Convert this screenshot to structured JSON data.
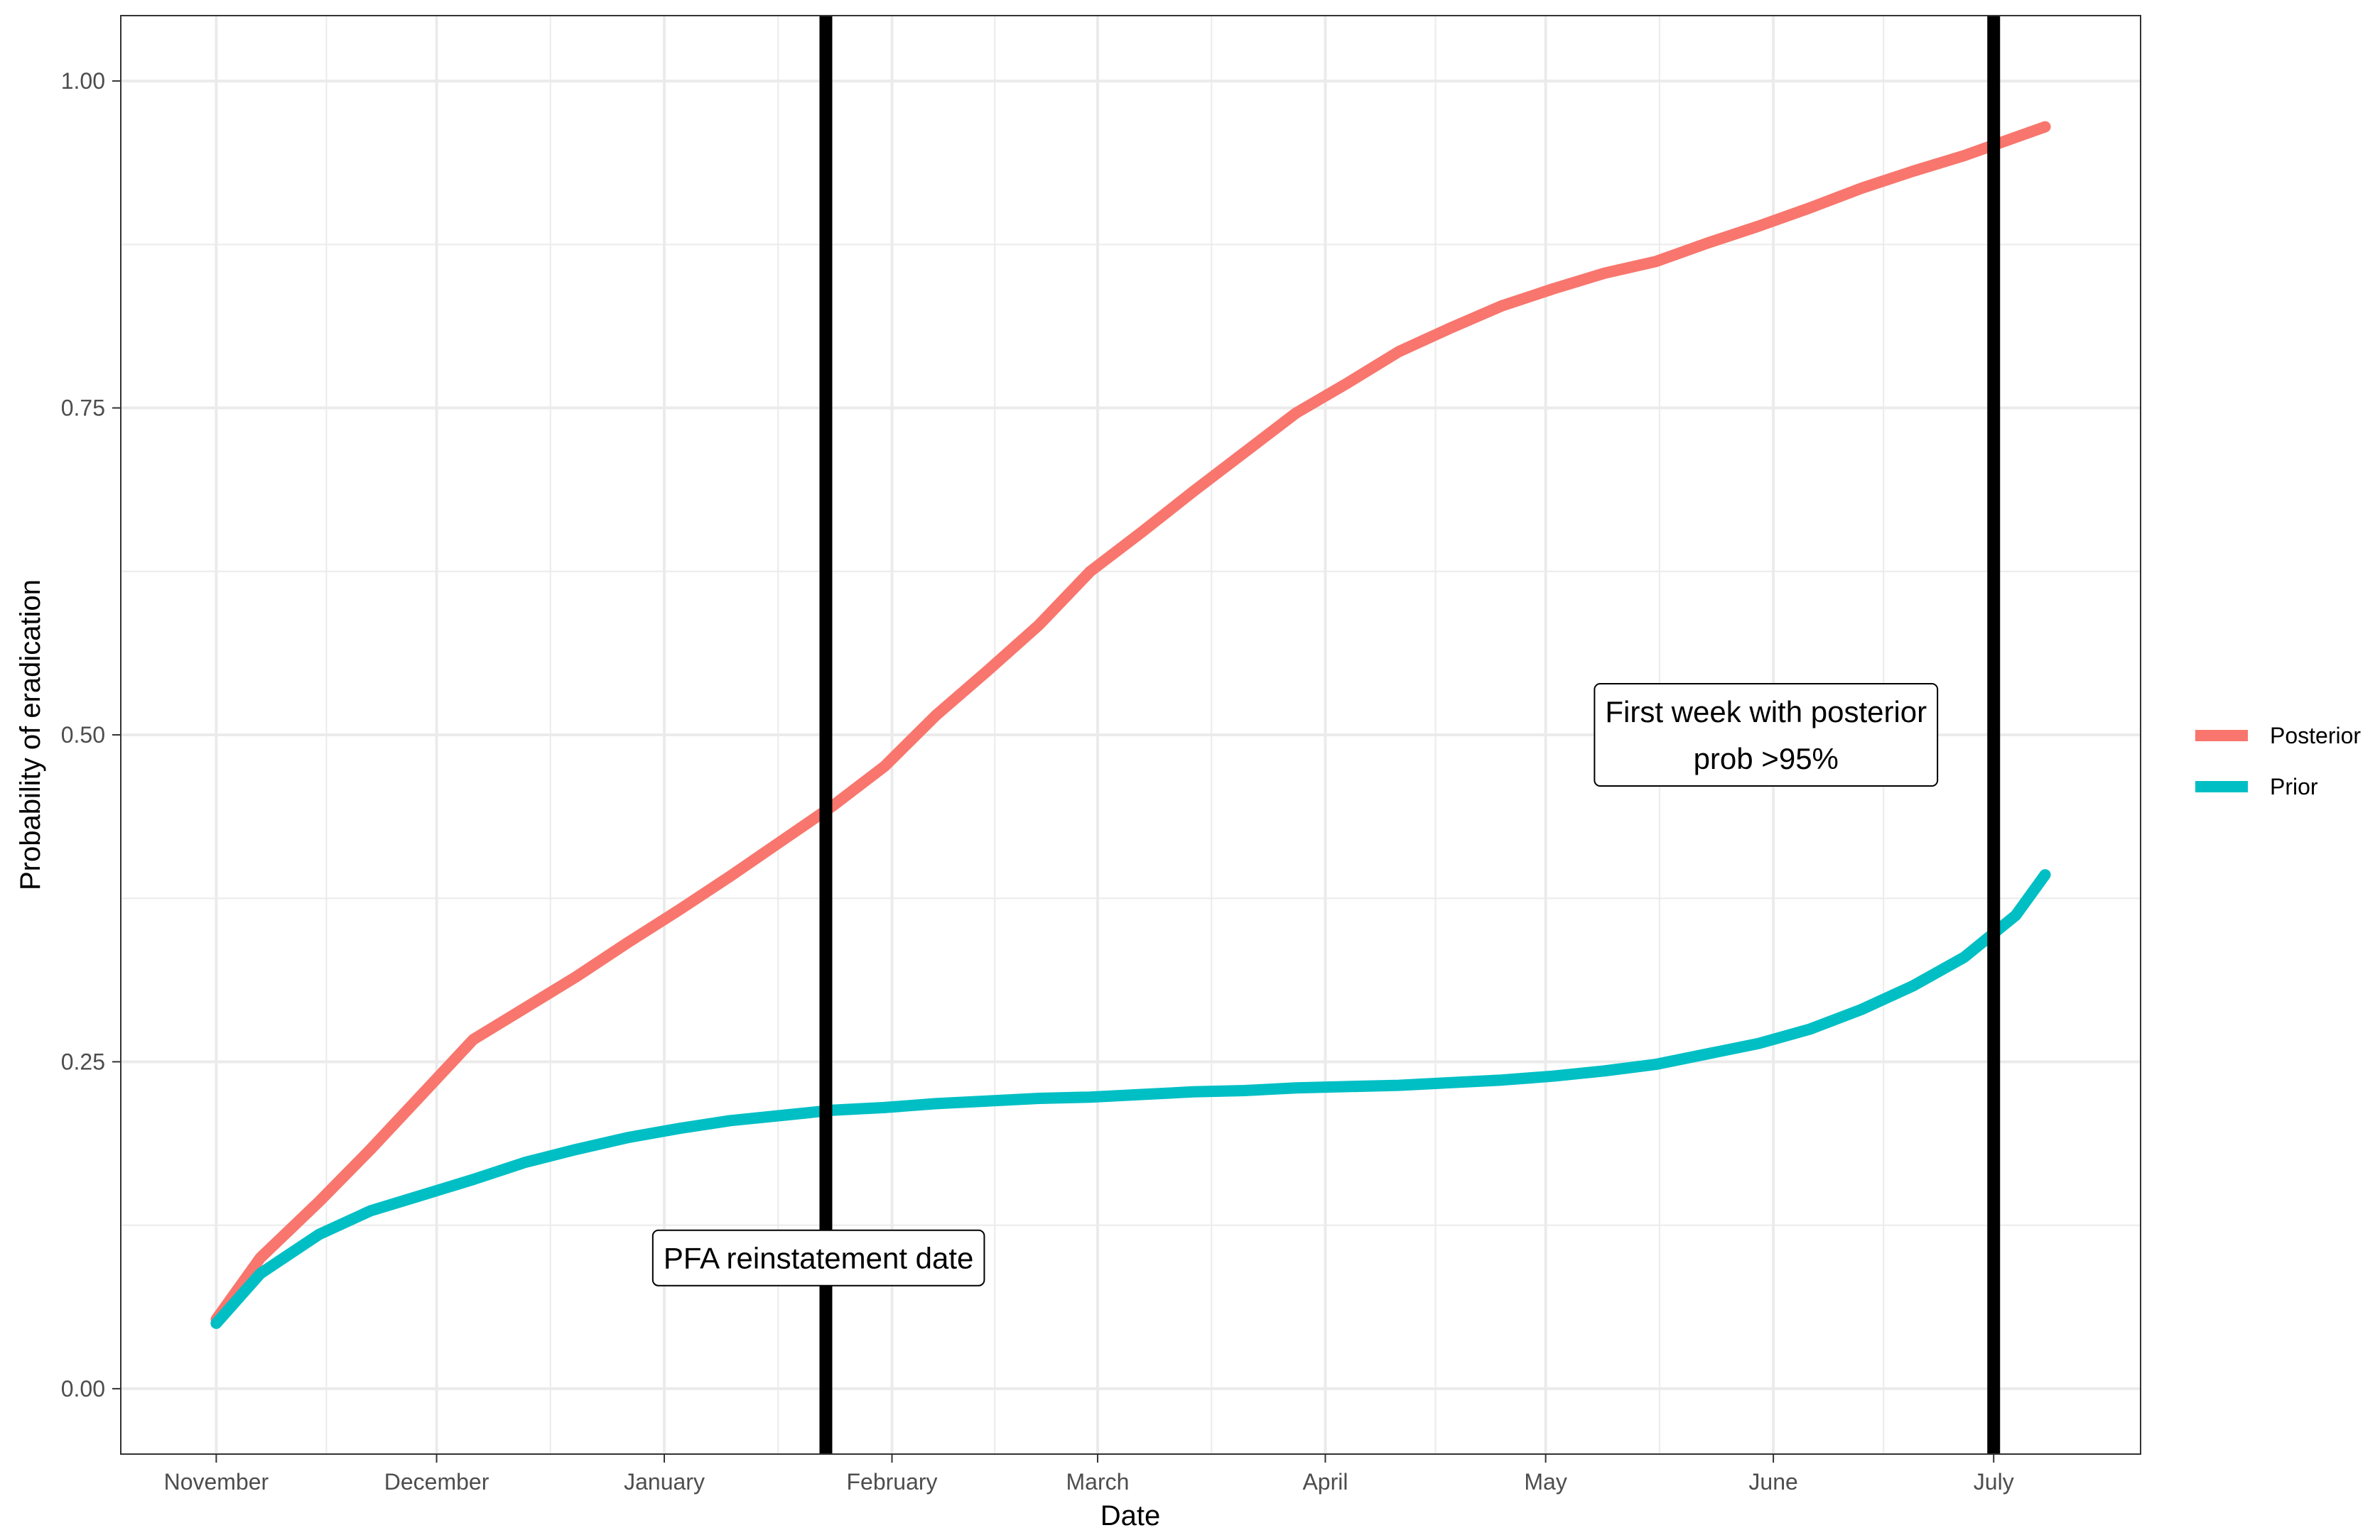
{
  "chart_data": {
    "type": "line",
    "xlabel": "Date",
    "ylabel": "Probability of eradication",
    "x_ticks": [
      "November",
      "December",
      "January",
      "February",
      "March",
      "April",
      "May",
      "June",
      "July"
    ],
    "x_tick_dates": [
      "2020-11-01",
      "2020-12-01",
      "2021-01-01",
      "2021-02-01",
      "2021-03-01",
      "2021-04-01",
      "2021-05-01",
      "2021-06-01",
      "2021-07-01"
    ],
    "xlim": [
      "2020-10-19",
      "2021-07-21"
    ],
    "y_ticks": [
      "0.00",
      "0.25",
      "0.50",
      "0.75",
      "1.00"
    ],
    "ylim": [
      -0.05,
      1.05
    ],
    "grid": true,
    "legend_position": "right",
    "series": [
      {
        "name": "Posterior",
        "color": "#F8766D",
        "points": [
          [
            "2020-11-01",
            0.053
          ],
          [
            "2020-11-07",
            0.1
          ],
          [
            "2020-11-15",
            0.143
          ],
          [
            "2020-11-22",
            0.183
          ],
          [
            "2020-11-29",
            0.225
          ],
          [
            "2020-12-06",
            0.267
          ],
          [
            "2020-12-13",
            0.291
          ],
          [
            "2020-12-20",
            0.315
          ],
          [
            "2020-12-27",
            0.341
          ],
          [
            "2021-01-03",
            0.366
          ],
          [
            "2021-01-10",
            0.392
          ],
          [
            "2021-01-17",
            0.419
          ],
          [
            "2021-01-24",
            0.446
          ],
          [
            "2021-01-31",
            0.476
          ],
          [
            "2021-02-07",
            0.515
          ],
          [
            "2021-02-14",
            0.549
          ],
          [
            "2021-02-21",
            0.584
          ],
          [
            "2021-02-28",
            0.625
          ],
          [
            "2021-03-07",
            0.655
          ],
          [
            "2021-03-14",
            0.686
          ],
          [
            "2021-03-21",
            0.716
          ],
          [
            "2021-03-28",
            0.746
          ],
          [
            "2021-04-04",
            0.769
          ],
          [
            "2021-04-11",
            0.793
          ],
          [
            "2021-04-18",
            0.811
          ],
          [
            "2021-04-25",
            0.828
          ],
          [
            "2021-05-02",
            0.841
          ],
          [
            "2021-05-09",
            0.853
          ],
          [
            "2021-05-16",
            0.862
          ],
          [
            "2021-05-23",
            0.876
          ],
          [
            "2021-05-30",
            0.889
          ],
          [
            "2021-06-06",
            0.903
          ],
          [
            "2021-06-13",
            0.918
          ],
          [
            "2021-06-20",
            0.931
          ],
          [
            "2021-06-27",
            0.943
          ],
          [
            "2021-07-04",
            0.957
          ],
          [
            "2021-07-08",
            0.965
          ]
        ]
      },
      {
        "name": "Prior",
        "color": "#00BFC4",
        "points": [
          [
            "2020-11-01",
            0.05
          ],
          [
            "2020-11-07",
            0.088
          ],
          [
            "2020-11-15",
            0.118
          ],
          [
            "2020-11-22",
            0.136
          ],
          [
            "2020-11-29",
            0.148
          ],
          [
            "2020-12-06",
            0.16
          ],
          [
            "2020-12-13",
            0.173
          ],
          [
            "2020-12-20",
            0.183
          ],
          [
            "2020-12-27",
            0.192
          ],
          [
            "2021-01-03",
            0.199
          ],
          [
            "2021-01-10",
            0.205
          ],
          [
            "2021-01-17",
            0.209
          ],
          [
            "2021-01-24",
            0.213
          ],
          [
            "2021-01-31",
            0.215
          ],
          [
            "2021-02-07",
            0.218
          ],
          [
            "2021-02-14",
            0.22
          ],
          [
            "2021-02-21",
            0.222
          ],
          [
            "2021-02-28",
            0.223
          ],
          [
            "2021-03-07",
            0.225
          ],
          [
            "2021-03-14",
            0.227
          ],
          [
            "2021-03-21",
            0.228
          ],
          [
            "2021-03-28",
            0.23
          ],
          [
            "2021-04-04",
            0.231
          ],
          [
            "2021-04-11",
            0.232
          ],
          [
            "2021-04-18",
            0.234
          ],
          [
            "2021-04-25",
            0.236
          ],
          [
            "2021-05-02",
            0.239
          ],
          [
            "2021-05-09",
            0.243
          ],
          [
            "2021-05-16",
            0.248
          ],
          [
            "2021-05-23",
            0.256
          ],
          [
            "2021-05-30",
            0.264
          ],
          [
            "2021-06-06",
            0.275
          ],
          [
            "2021-06-13",
            0.29
          ],
          [
            "2021-06-20",
            0.308
          ],
          [
            "2021-06-27",
            0.33
          ],
          [
            "2021-07-04",
            0.362
          ],
          [
            "2021-07-08",
            0.393
          ]
        ]
      }
    ],
    "vlines": [
      {
        "date": "2021-01-23",
        "label": "PFA reinstatement date",
        "label_y": 0.1,
        "label_date": "2021-01-22"
      },
      {
        "date": "2021-07-01",
        "label": "First week with posterior prob >95%",
        "label_lines": [
          "First week with posterior",
          "prob >95%"
        ],
        "label_y": 0.5,
        "label_date": "2021-05-31"
      }
    ]
  }
}
